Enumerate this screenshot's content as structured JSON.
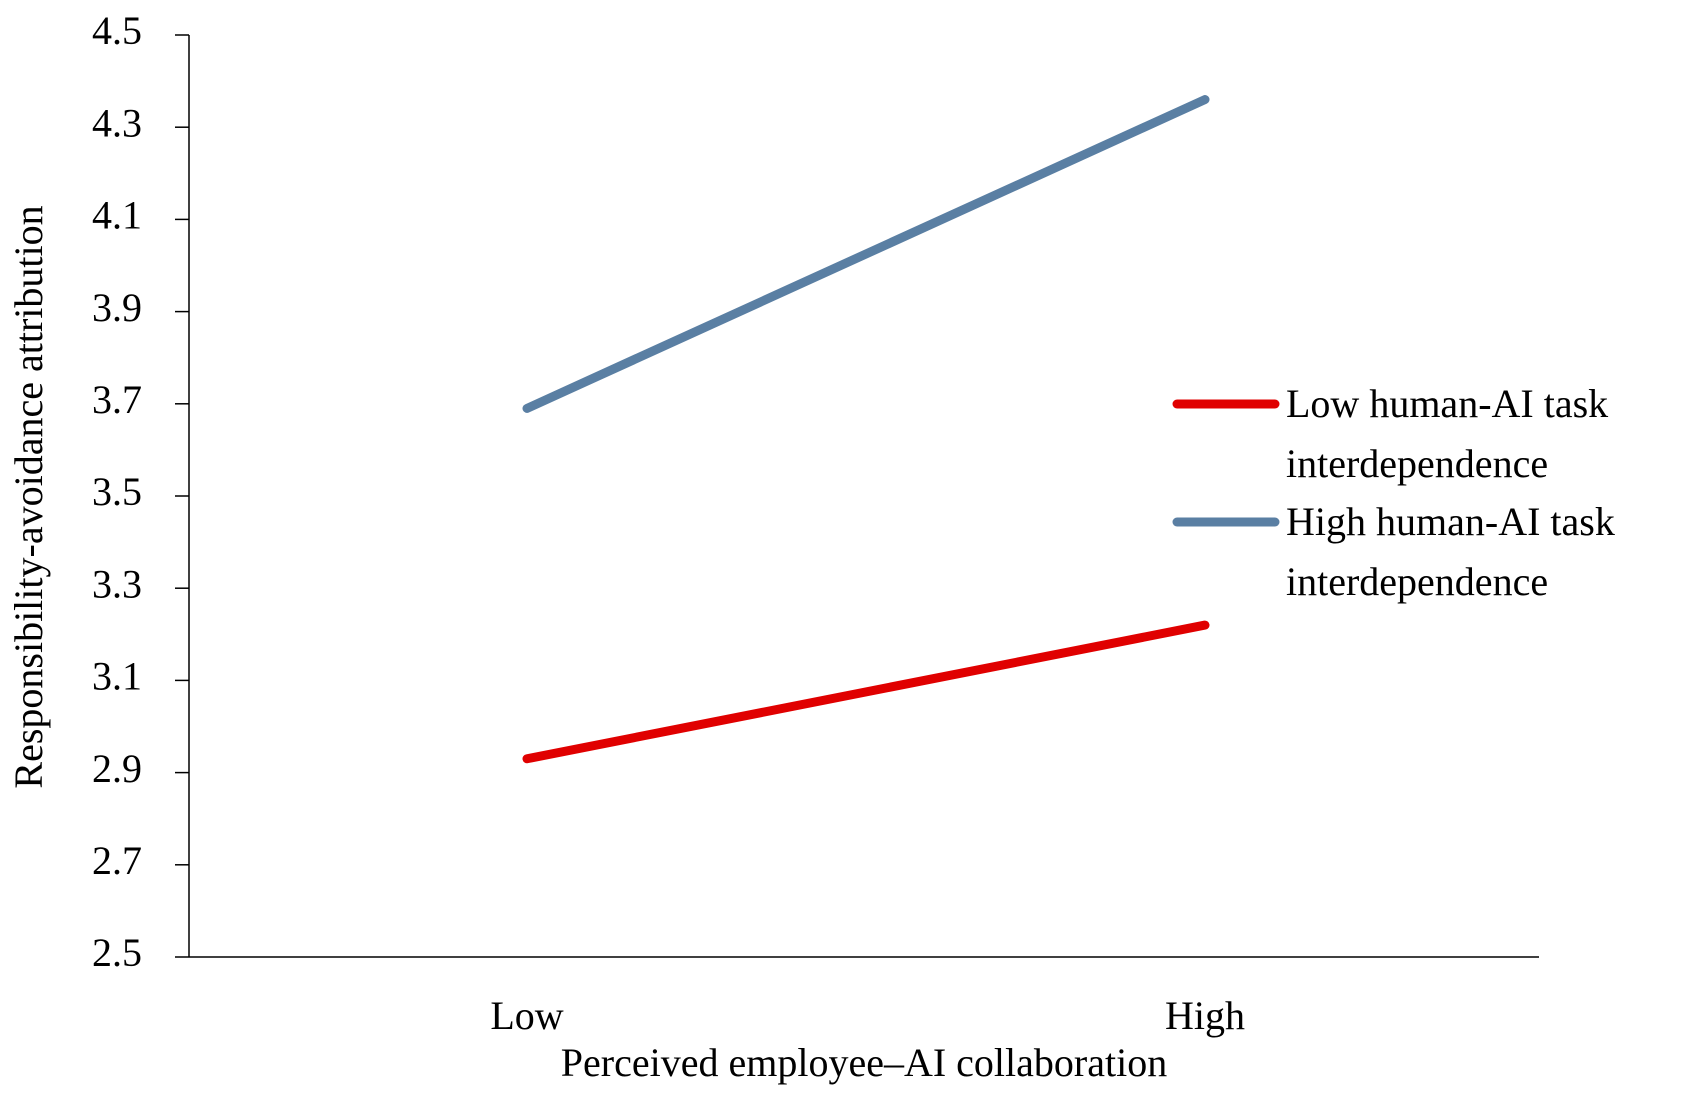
{
  "chart_data": {
    "type": "line",
    "x_label": "Perceived employee–AI collaboration",
    "y_label": "Responsibility-avoidance attribution",
    "categories": [
      "Low",
      "High"
    ],
    "series": [
      {
        "name": "Low human-AI task interdependence",
        "color": "#e00000",
        "values": [
          2.93,
          3.22
        ]
      },
      {
        "name": "High human-AI task interdependence",
        "color": "#5a7fa3",
        "values": [
          3.69,
          4.36
        ]
      }
    ],
    "ylim": [
      2.5,
      4.5
    ],
    "yticks": [
      2.5,
      2.7,
      2.9,
      3.1,
      3.3,
      3.5,
      3.7,
      3.9,
      4.1,
      4.3,
      4.5
    ],
    "grid": false,
    "legend": "right"
  }
}
